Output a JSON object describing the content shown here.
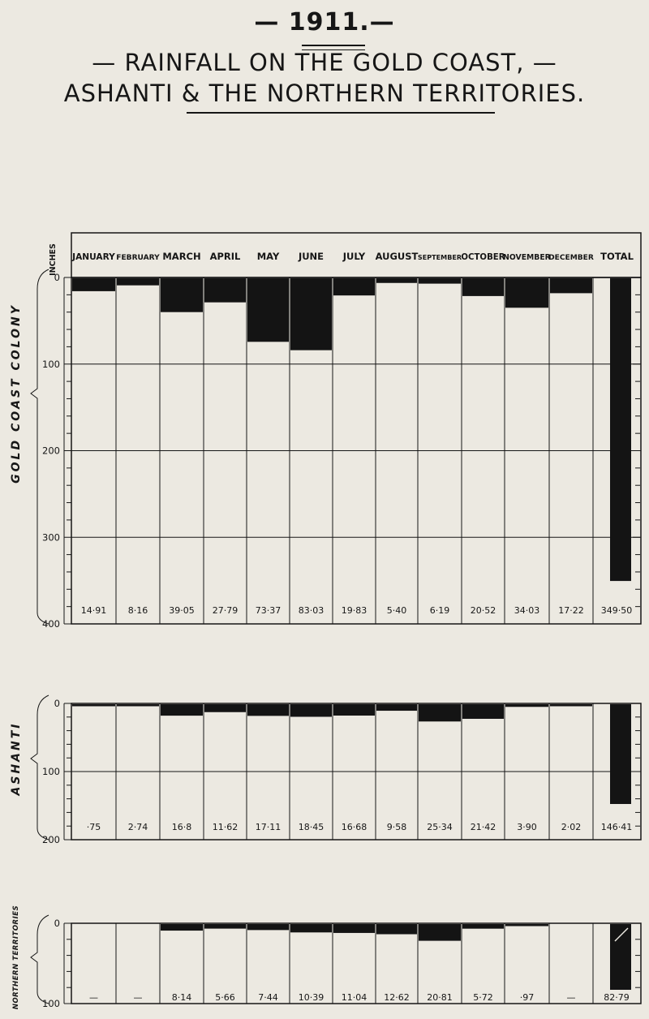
{
  "header": {
    "year": "— 1911.—",
    "title_line1": "— RAINFALL ON THE GOLD COAST, —",
    "title_line2": "ASHANTI & THE NORTHERN TERRITORIES."
  },
  "units_label": "INCHES",
  "months": [
    "JANUARY",
    "FEBRUARY",
    "MARCH",
    "APRIL",
    "MAY",
    "JUNE",
    "JULY",
    "AUGUST",
    "SEPTEMBER",
    "OCTOBER",
    "NOVEMBER",
    "DECEMBER",
    "TOTAL"
  ],
  "chart_data": [
    {
      "type": "bar",
      "orientation": "down",
      "region": "GOLD COAST COLONY",
      "unit": "inches",
      "categories": [
        "JANUARY",
        "FEBRUARY",
        "MARCH",
        "APRIL",
        "MAY",
        "JUNE",
        "JULY",
        "AUGUST",
        "SEPTEMBER",
        "OCTOBER",
        "NOVEMBER",
        "DECEMBER"
      ],
      "values": [
        14.91,
        8.16,
        39.05,
        27.79,
        73.37,
        83.03,
        19.83,
        5.4,
        6.19,
        20.52,
        34.03,
        17.22
      ],
      "value_labels": [
        "14·91",
        "8·16",
        "39·05",
        "27·79",
        "73·37",
        "83·03",
        "19·83",
        "5·40",
        "6·19",
        "20·52",
        "34·03",
        "17·22"
      ],
      "total": 349.5,
      "total_label": "349·50",
      "ylim": [
        0,
        400
      ],
      "yticks": [
        0,
        100,
        200,
        300,
        400
      ],
      "ytick_labels": [
        "0",
        "100",
        "200",
        "300",
        "400"
      ]
    },
    {
      "type": "bar",
      "orientation": "down",
      "region": "ASHANTI",
      "unit": "inches",
      "categories": [
        "JANUARY",
        "FEBRUARY",
        "MARCH",
        "APRIL",
        "MAY",
        "JUNE",
        "JULY",
        "AUGUST",
        "SEPTEMBER",
        "OCTOBER",
        "NOVEMBER",
        "DECEMBER"
      ],
      "values": [
        0.75,
        2.74,
        16.8,
        11.62,
        17.11,
        18.45,
        16.68,
        9.58,
        25.34,
        21.42,
        3.9,
        2.02
      ],
      "value_labels": [
        "·75",
        "2·74",
        "16·8",
        "11·62",
        "17·11",
        "18·45",
        "16·68",
        "9·58",
        "25·34",
        "21·42",
        "3·90",
        "2·02"
      ],
      "total": 146.41,
      "total_label": "146·41",
      "ylim": [
        0,
        200
      ],
      "yticks": [
        0,
        100,
        200
      ],
      "ytick_labels": [
        "0",
        "100",
        "200"
      ]
    },
    {
      "type": "bar",
      "orientation": "down",
      "region": "NORTHERN TERRITORIES",
      "unit": "inches",
      "categories": [
        "JANUARY",
        "FEBRUARY",
        "MARCH",
        "APRIL",
        "MAY",
        "JUNE",
        "JULY",
        "AUGUST",
        "SEPTEMBER",
        "OCTOBER",
        "NOVEMBER",
        "DECEMBER"
      ],
      "values": [
        0,
        0,
        8.14,
        5.66,
        7.44,
        10.39,
        11.04,
        12.62,
        20.81,
        5.72,
        0.97,
        0
      ],
      "value_labels": [
        "—",
        "—",
        "8·14",
        "5·66",
        "7·44",
        "10·39",
        "11·04",
        "12·62",
        "20·81",
        "5·72",
        "·97",
        "—"
      ],
      "total": 82.79,
      "total_label": "82·79",
      "ylim": [
        0,
        100
      ],
      "yticks": [
        0,
        100
      ],
      "ytick_labels": [
        "0",
        "100"
      ]
    }
  ],
  "side_labels": [
    "GOLD COAST COLONY",
    "ASHANTI",
    "NORTHERN TERRITORIES"
  ],
  "colors": {
    "bar": "#141414",
    "paper": "#ece9e1",
    "line": "#161616"
  }
}
